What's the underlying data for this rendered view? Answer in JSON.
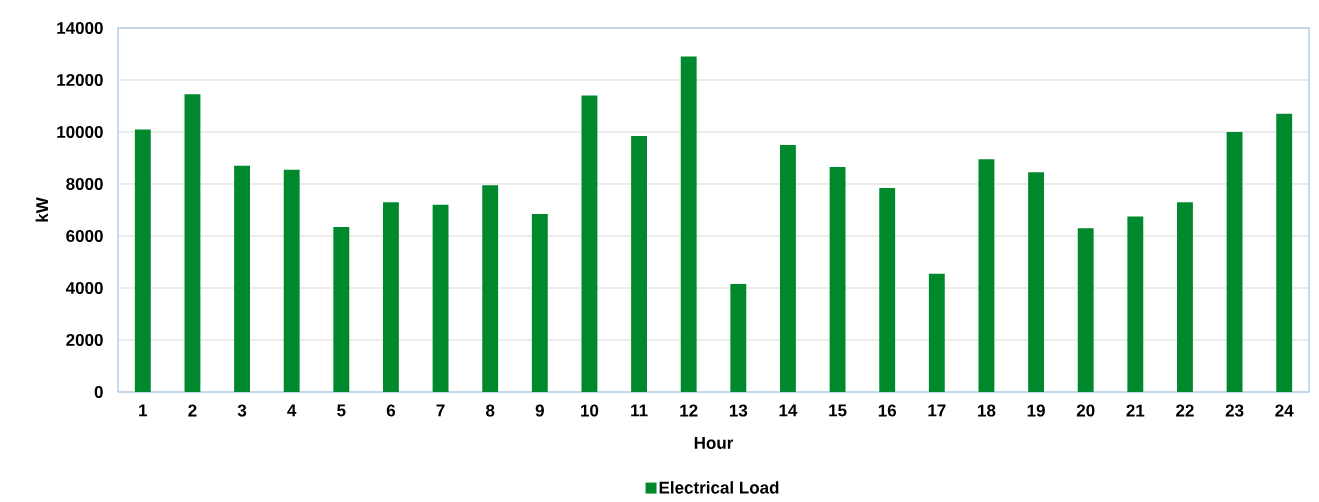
{
  "chart_data": {
    "type": "bar",
    "xlabel": "Hour",
    "ylabel": "kW",
    "categories": [
      "1",
      "2",
      "3",
      "4",
      "5",
      "6",
      "7",
      "8",
      "9",
      "10",
      "11",
      "12",
      "13",
      "14",
      "15",
      "16",
      "17",
      "18",
      "19",
      "20",
      "21",
      "22",
      "23",
      "24"
    ],
    "series": [
      {
        "name": "Electrical Load",
        "color": "#00892c",
        "values": [
          10100,
          11450,
          8700,
          8550,
          6350,
          7300,
          7200,
          7950,
          6850,
          11400,
          9850,
          12900,
          4150,
          9500,
          8650,
          7850,
          4550,
          8950,
          8450,
          6300,
          6750,
          7300,
          10000,
          10700
        ]
      }
    ],
    "ylim": [
      0,
      14000
    ],
    "yticks": [
      0,
      2000,
      4000,
      6000,
      8000,
      10000,
      12000,
      14000
    ],
    "grid": "y",
    "legend": "bottom"
  }
}
